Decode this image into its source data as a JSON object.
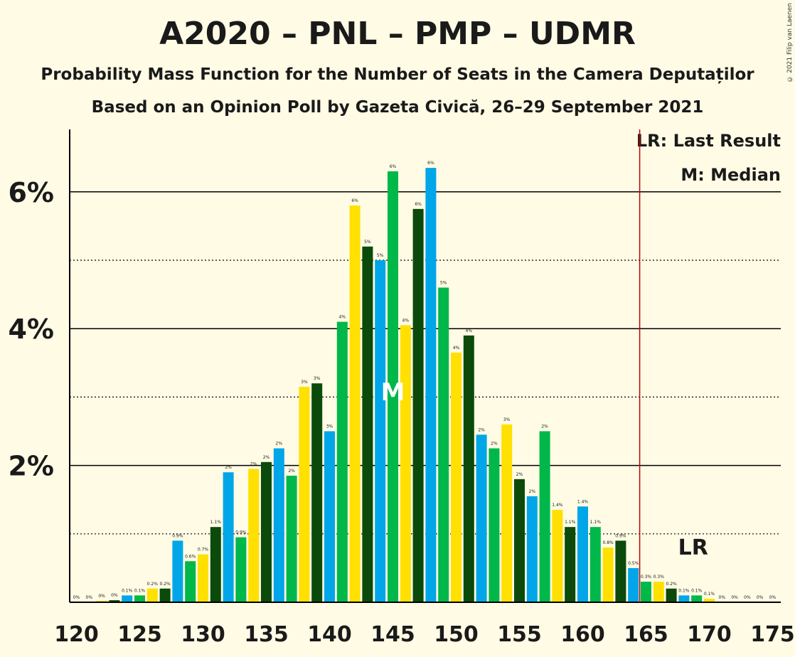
{
  "title": "A2020 – PNL – PMP – UDMR",
  "subtitle": "Probability Mass Function for the Number of Seats in the Camera Deputaților",
  "subtitle2": "Based on an Opinion Poll by Gazeta Civică, 26–29 September 2021",
  "copyright": "© 2021 Filip van Laenen",
  "legend": {
    "last_result": "LR: Last Result",
    "median": "M: Median"
  },
  "markers": {
    "median_label": "M",
    "last_result_label": "LR"
  },
  "colors": {
    "background": "#fffbe5",
    "blue": "#00a6e8",
    "green": "#00b74a",
    "yellow": "#ffe000",
    "darkgreen": "#0b4a0b",
    "lr_line": "#c00000"
  },
  "chart_data": {
    "type": "bar",
    "xlabel": "",
    "ylabel": "",
    "x": [
      120,
      121,
      122,
      123,
      124,
      125,
      126,
      127,
      128,
      129,
      130,
      131,
      132,
      133,
      134,
      135,
      136,
      137,
      138,
      139,
      140,
      141,
      142,
      143,
      144,
      145,
      146,
      147,
      148,
      149,
      150,
      151,
      152,
      153,
      154,
      155,
      156,
      157,
      158,
      159,
      160,
      161,
      162,
      163,
      164,
      165,
      166,
      167,
      168,
      169,
      170,
      171,
      172,
      173,
      174,
      175
    ],
    "values": [
      0.0,
      0.0,
      0.02,
      0.03,
      0.1,
      0.1,
      0.2,
      0.2,
      0.9,
      0.6,
      0.7,
      1.1,
      1.9,
      0.95,
      1.95,
      2.05,
      2.25,
      1.85,
      3.15,
      3.2,
      2.5,
      4.1,
      5.8,
      5.2,
      5.0,
      6.3,
      4.05,
      5.75,
      6.35,
      4.6,
      3.65,
      3.9,
      2.45,
      2.25,
      2.6,
      1.8,
      1.55,
      2.5,
      1.35,
      1.1,
      1.4,
      1.1,
      0.8,
      0.9,
      0.5,
      0.3,
      0.3,
      0.2,
      0.1,
      0.1,
      0.05,
      0.0,
      0.0,
      0.0,
      0.0,
      0.0
    ],
    "labels": [
      "0%",
      "0%",
      "0%",
      "0%",
      "0.1%",
      "0.1%",
      "0.2%",
      "0.2%",
      "0.9%",
      "0.6%",
      "0.7%",
      "1.1%",
      "2%",
      "0.9%",
      "2%",
      "2%",
      "2%",
      "2%",
      "3%",
      "3%",
      "3%",
      "4%",
      "6%",
      "5%",
      "5%",
      "6%",
      "4%",
      "6%",
      "6%",
      "5%",
      "4%",
      "4%",
      "2%",
      "2%",
      "3%",
      "2%",
      "2%",
      "2%",
      "1.4%",
      "1.1%",
      "1.4%",
      "1.1%",
      "0.8%",
      "0.9%",
      "0.5%",
      "0.3%",
      "0.3%",
      "0.2%",
      "0.1%",
      "0.1%",
      "0.1%",
      "0%",
      "0%",
      "0%",
      "0%",
      "0%"
    ],
    "color_cycle": [
      "blue",
      "green",
      "yellow",
      "darkgreen"
    ],
    "ylim": [
      0,
      6.9
    ],
    "yticks": [
      {
        "value": 2,
        "label": "2%"
      },
      {
        "value": 4,
        "label": "4%"
      },
      {
        "value": 6,
        "label": "6%"
      }
    ],
    "minor_gridlines": [
      1,
      3,
      5
    ],
    "xticks": [
      120,
      125,
      130,
      135,
      140,
      145,
      150,
      155,
      160,
      165,
      170,
      175
    ],
    "median": 145,
    "last_result": 165,
    "lr_label_at": 169
  }
}
